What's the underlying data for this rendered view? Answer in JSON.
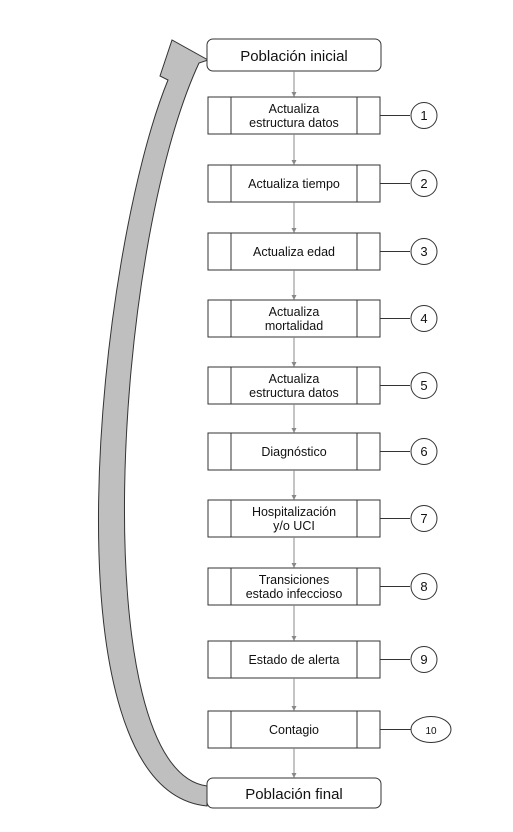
{
  "start_node": {
    "label": "Población inicial"
  },
  "end_node": {
    "label": "Población final"
  },
  "steps": [
    {
      "label": "Actualiza estructura datos",
      "lines": [
        "Actualiza",
        "estructura datos"
      ],
      "number": "1"
    },
    {
      "label": "Actualiza tiempo",
      "lines": [
        "Actualiza tiempo"
      ],
      "number": "2"
    },
    {
      "label": "Actualiza edad",
      "lines": [
        "Actualiza edad"
      ],
      "number": "3"
    },
    {
      "label": "Actualiza mortalidad",
      "lines": [
        "Actualiza",
        "mortalidad"
      ],
      "number": "4"
    },
    {
      "label": "Actualiza estructura datos",
      "lines": [
        "Actualiza",
        "estructura datos"
      ],
      "number": "5"
    },
    {
      "label": "Diagnóstico",
      "lines": [
        "Diagnóstico"
      ],
      "number": "6"
    },
    {
      "label": "Hospitalización y/o UCI",
      "lines": [
        "Hospitalización",
        "y/o UCI"
      ],
      "number": "7"
    },
    {
      "label": "Transiciones estado infeccioso",
      "lines": [
        "Transiciones",
        "estado infeccioso"
      ],
      "number": "8"
    },
    {
      "label": "Estado de alerta",
      "lines": [
        "Estado de alerta"
      ],
      "number": "9"
    },
    {
      "label": "Contagio",
      "lines": [
        "Contagio"
      ],
      "number": "10"
    }
  ],
  "colors": {
    "stroke": "#333333",
    "connector": "#888888",
    "loop_fill": "#bfbfbf",
    "box_fill": "#ffffff"
  }
}
